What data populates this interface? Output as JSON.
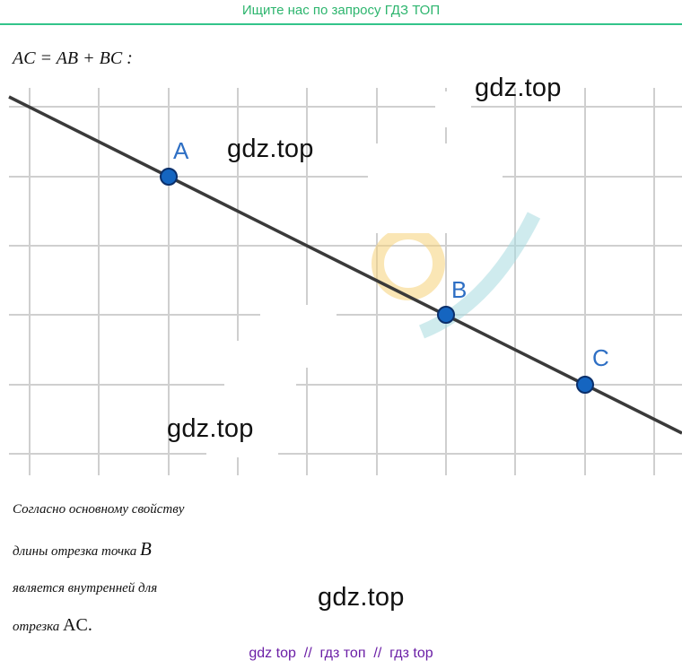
{
  "banner": {
    "text": "Ищите нас по запросу ГДЗ ТОП"
  },
  "formula": {
    "text": "AC = AB + BC :"
  },
  "diagram": {
    "points": [
      {
        "label": "A"
      },
      {
        "label": "B"
      },
      {
        "label": "C"
      }
    ],
    "colors": {
      "point_fill": "#1565c0",
      "point_stroke": "#0b2f6a",
      "label": "#2e6fc4",
      "line": "#3a3a3a",
      "grid": "#cfcfcf"
    }
  },
  "watermarks": [
    "gdz.top",
    "gdz.top",
    "gdz.top",
    "gdz.top"
  ],
  "paragraph": {
    "line1": "Согласно основному свойству",
    "line2_prefix": "длины отрезка точка ",
    "line2_point": "B",
    "line3": "является внутренней для",
    "line4_prefix": "отрезка ",
    "line4_segment": "AC."
  },
  "footer": {
    "text": "gdz top  //  гдз топ  //  гдз top"
  }
}
